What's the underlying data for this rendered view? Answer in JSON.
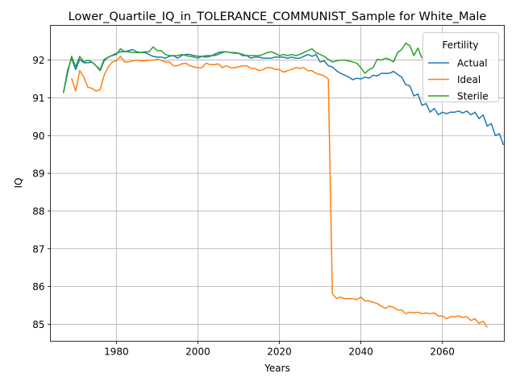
{
  "chart_data": {
    "type": "line",
    "title": "Lower_Quartile_IQ_in_TOLERANCE_COMMUNIST_Sample for White_Male",
    "xlabel": "Years",
    "ylabel": "IQ",
    "xlim": [
      1963.8,
      2075.2
    ],
    "ylim": [
      84.55,
      92.92
    ],
    "xticks": [
      1980,
      2000,
      2020,
      2040,
      2060
    ],
    "yticks": [
      85,
      86,
      87,
      88,
      89,
      90,
      91,
      92
    ],
    "grid": true,
    "legend": {
      "title": "Fertility",
      "placement": "upper right"
    },
    "series": [
      {
        "name": "Actual",
        "color": "#1f77b4",
        "x_start": 1967,
        "values": [
          91.13,
          91.72,
          92.05,
          91.75,
          92.02,
          91.93,
          91.93,
          91.95,
          91.85,
          91.75,
          92.02,
          92.07,
          92.13,
          92.18,
          92.22,
          92.22,
          92.25,
          92.28,
          92.22,
          92.2,
          92.2,
          92.15,
          92.1,
          92.08,
          92.08,
          92.05,
          92.1,
          92.12,
          92.05,
          92.12,
          92.15,
          92.15,
          92.12,
          92.1,
          92.1,
          92.08,
          92.1,
          92.15,
          92.2,
          92.22,
          92.22,
          92.2,
          92.2,
          92.18,
          92.12,
          92.12,
          92.05,
          92.08,
          92.08,
          92.05,
          92.05,
          92.05,
          92.08,
          92.08,
          92.08,
          92.05,
          92.08,
          92.05,
          92.05,
          92.1,
          92.15,
          92.1,
          92.15,
          91.95,
          91.98,
          91.85,
          91.82,
          91.72,
          91.65,
          91.6,
          91.55,
          91.48,
          91.52,
          91.5,
          91.55,
          91.52,
          91.6,
          91.58,
          91.65,
          91.65,
          91.65,
          91.7,
          91.62,
          91.55,
          91.35,
          91.32,
          91.05,
          91.1,
          90.8,
          90.85,
          90.62,
          90.72,
          90.55,
          90.62,
          90.58,
          90.62,
          90.62,
          90.65,
          90.6,
          90.65,
          90.55,
          90.62,
          90.45,
          90.55,
          90.25,
          90.32,
          90.0,
          90.05,
          89.75
        ]
      },
      {
        "name": "Ideal",
        "color": "#ff7f0e",
        "x_start": 1969,
        "values": [
          91.52,
          91.18,
          91.72,
          91.55,
          91.28,
          91.25,
          91.18,
          91.22,
          91.6,
          91.82,
          91.95,
          91.98,
          92.1,
          91.95,
          91.95,
          91.98,
          92.0,
          91.98,
          91.98,
          92.0,
          92.0,
          92.02,
          92.0,
          91.95,
          91.95,
          91.85,
          91.85,
          91.9,
          91.92,
          91.85,
          91.82,
          91.8,
          91.8,
          91.92,
          91.88,
          91.88,
          91.9,
          91.8,
          91.85,
          91.8,
          91.8,
          91.82,
          91.85,
          91.85,
          91.78,
          91.78,
          91.72,
          91.75,
          91.8,
          91.8,
          91.75,
          91.75,
          91.68,
          91.72,
          91.75,
          91.8,
          91.78,
          91.8,
          91.72,
          91.72,
          91.65,
          91.62,
          91.58,
          91.5,
          85.82,
          85.68,
          85.72,
          85.68,
          85.68,
          85.68,
          85.65,
          85.72,
          85.62,
          85.62,
          85.58,
          85.55,
          85.48,
          85.42,
          85.48,
          85.45,
          85.38,
          85.38,
          85.28,
          85.32,
          85.3,
          85.32,
          85.28,
          85.3,
          85.28,
          85.3,
          85.22,
          85.22,
          85.15,
          85.2,
          85.2,
          85.22,
          85.18,
          85.2,
          85.1,
          85.15,
          85.02,
          85.08,
          84.92
        ]
      },
      {
        "name": "Sterile",
        "color": "#2ca02c",
        "x_start": 1967,
        "values": [
          91.13,
          91.65,
          92.1,
          91.82,
          92.1,
          91.95,
          92.0,
          91.95,
          91.85,
          91.72,
          91.98,
          92.08,
          92.12,
          92.15,
          92.3,
          92.22,
          92.22,
          92.2,
          92.2,
          92.2,
          92.22,
          92.22,
          92.35,
          92.25,
          92.25,
          92.15,
          92.12,
          92.12,
          92.12,
          92.15,
          92.12,
          92.1,
          92.08,
          92.05,
          92.1,
          92.12,
          92.12,
          92.12,
          92.15,
          92.2,
          92.22,
          92.2,
          92.18,
          92.18,
          92.15,
          92.12,
          92.12,
          92.12,
          92.12,
          92.15,
          92.2,
          92.22,
          92.18,
          92.12,
          92.15,
          92.12,
          92.15,
          92.12,
          92.15,
          92.2,
          92.25,
          92.3,
          92.2,
          92.15,
          92.1,
          92.02,
          91.95,
          91.98,
          92.0,
          92.0,
          91.98,
          91.95,
          91.92,
          91.8,
          91.65,
          91.75,
          91.8,
          92.02,
          92.0,
          92.05,
          92.02,
          91.95,
          92.2,
          92.28,
          92.45,
          92.38,
          92.12,
          92.32,
          92.05
        ]
      }
    ]
  }
}
